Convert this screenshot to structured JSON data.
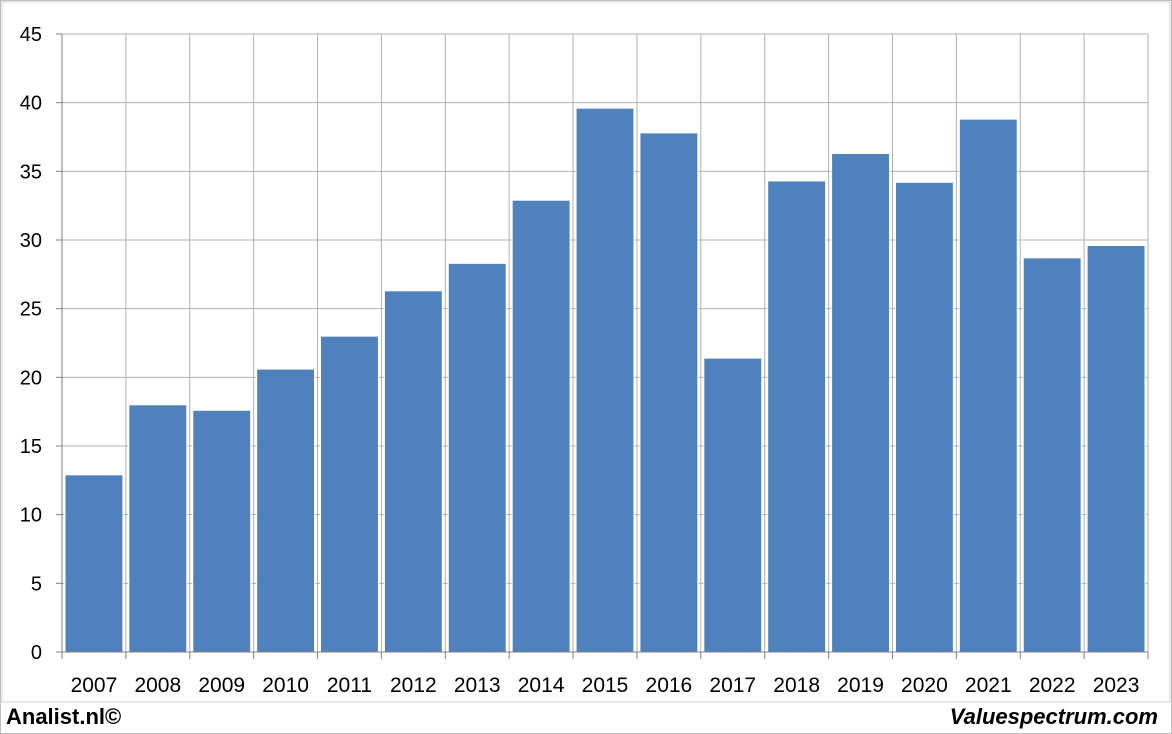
{
  "chart_data": {
    "type": "bar",
    "categories": [
      "2007",
      "2008",
      "2009",
      "2010",
      "2011",
      "2012",
      "2013",
      "2014",
      "2015",
      "2016",
      "2017",
      "2018",
      "2019",
      "2020",
      "2021",
      "2022",
      "2023"
    ],
    "values": [
      12.9,
      18.0,
      17.6,
      20.6,
      23.0,
      26.3,
      28.3,
      32.9,
      39.6,
      37.8,
      21.4,
      34.3,
      36.3,
      34.2,
      38.8,
      28.7,
      29.6
    ],
    "ylim": [
      0,
      45
    ],
    "yticks": [
      0,
      5,
      10,
      15,
      20,
      25,
      30,
      35,
      40,
      45
    ],
    "grid": true,
    "bar_color": "#4f81bd",
    "grid_color": "#b0b0b0"
  },
  "footer": {
    "left": "Analist.nl©",
    "right": "Valuespectrum.com"
  }
}
